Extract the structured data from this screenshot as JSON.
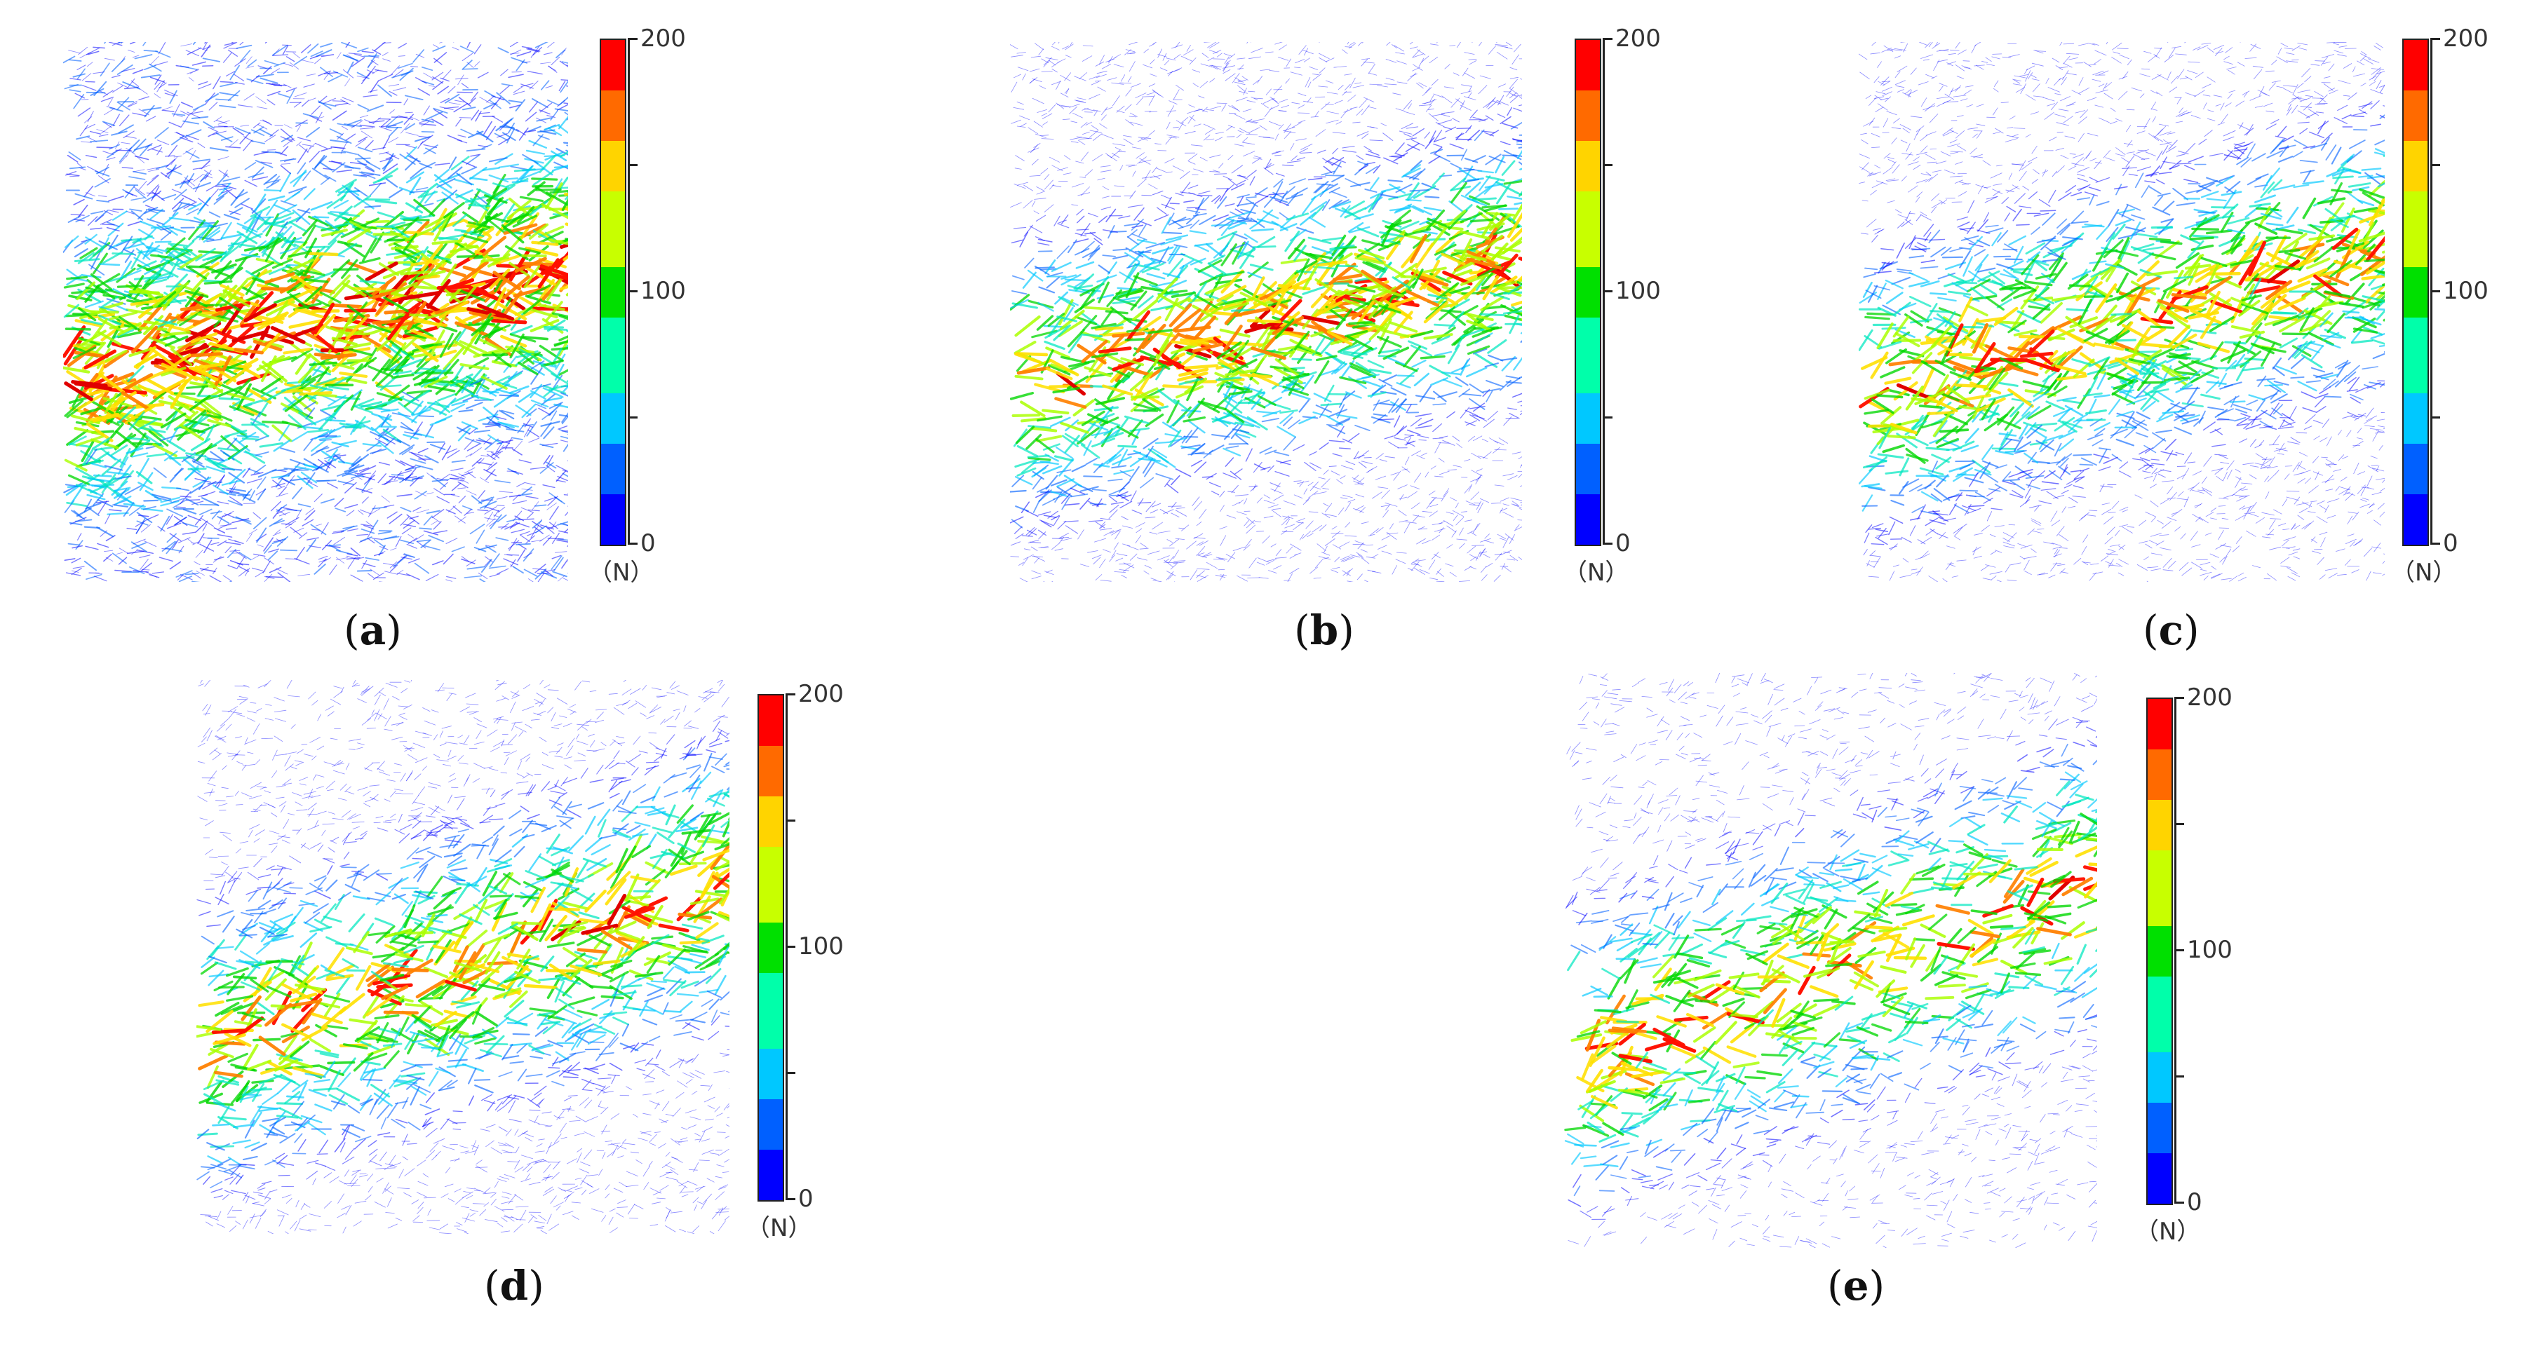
{
  "colorbar": {
    "ticks": [
      "200",
      "100",
      "0"
    ],
    "unit": "（N）",
    "stops": [
      "#ff0000",
      "#ff6a00",
      "#ffd400",
      "#c8ff00",
      "#00e000",
      "#00ffaa",
      "#00c8ff",
      "#0060ff",
      "#0000ff"
    ]
  },
  "panels": [
    {
      "id": "a",
      "caption_open": "(",
      "caption_letter": "a",
      "caption_close": ")"
    },
    {
      "id": "b",
      "caption_open": "(",
      "caption_letter": "b",
      "caption_close": ")"
    },
    {
      "id": "c",
      "caption_open": "(",
      "caption_letter": "c",
      "caption_close": ")"
    },
    {
      "id": "d",
      "caption_open": "(",
      "caption_letter": "d",
      "caption_close": ")"
    },
    {
      "id": "e",
      "caption_open": "(",
      "caption_letter": "e",
      "caption_close": ")"
    }
  ]
}
